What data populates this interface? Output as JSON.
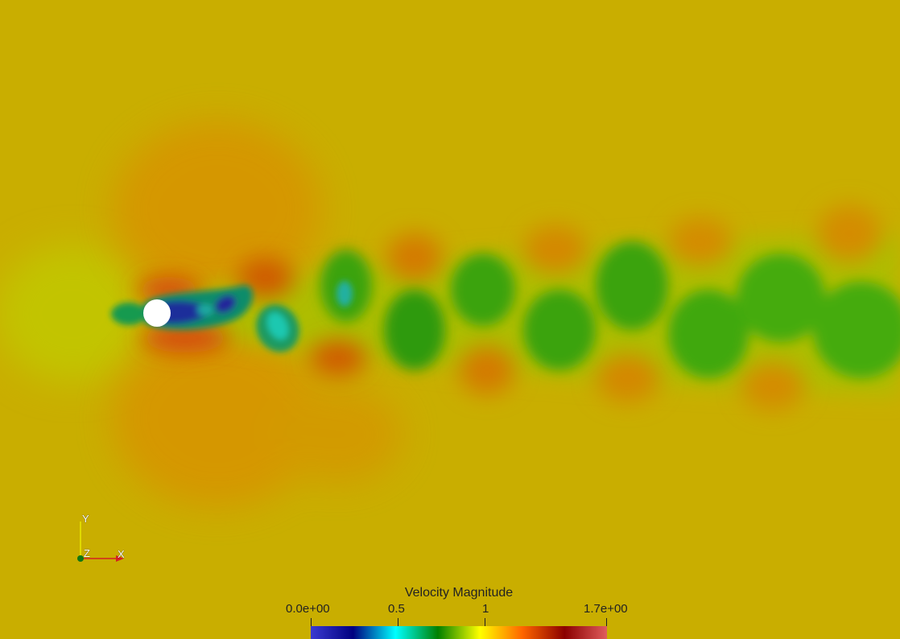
{
  "legend": {
    "title": "Velocity Magnitude",
    "ticks": [
      {
        "label": "0.0e+00",
        "value": 0.0
      },
      {
        "label": "0.5",
        "value": 0.5
      },
      {
        "label": "1",
        "value": 1.0
      },
      {
        "label": "1.7e+00",
        "value": 1.7
      }
    ],
    "range": [
      0.0,
      1.7
    ],
    "colormap": [
      "#3b3bd1",
      "#000080",
      "#00ffff",
      "#008000",
      "#ffff00",
      "#ff6600",
      "#8b0000",
      "#e05c5c"
    ]
  },
  "orientation_axes": {
    "y_label": "Y",
    "x_label": "X",
    "z_label": "Z",
    "x_color": "#d42020",
    "y_color": "#e8e800",
    "z_color": "#117711"
  },
  "scene": {
    "background_color": "#c9ae00",
    "cylinder_color": "#ffffff"
  }
}
